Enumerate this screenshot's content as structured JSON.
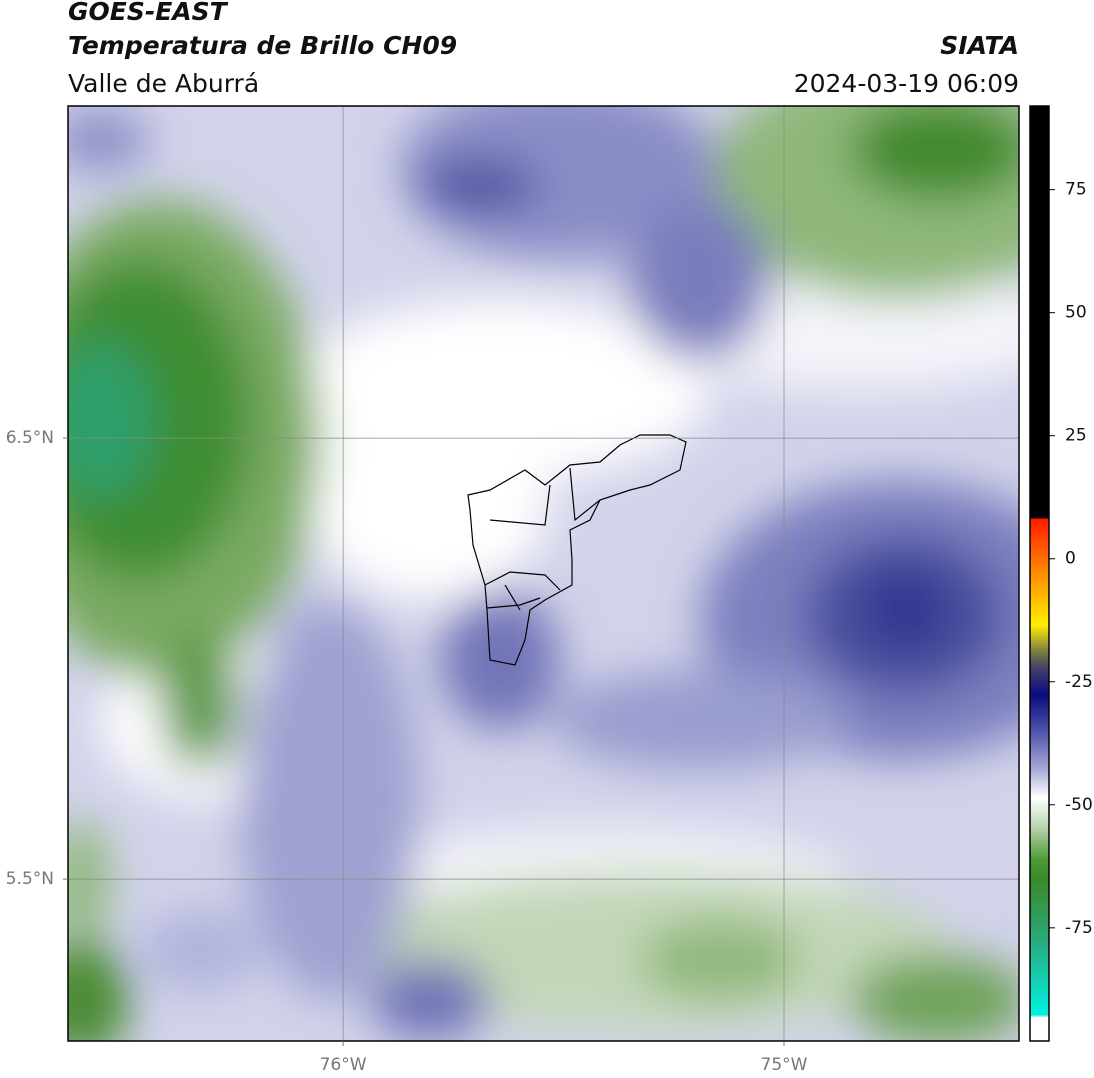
{
  "header": {
    "title": "GOES-EAST",
    "subtitle": "Temperatura de Brillo CH09",
    "region": "Valle de Aburrá",
    "source": "SIATA",
    "datetime": "2024-03-19 06:09"
  },
  "chart_data": {
    "type": "map",
    "xlim": [
      -76.624,
      -74.467
    ],
    "ylim": [
      5.133,
      7.253
    ],
    "xticks": [
      {
        "value": -76,
        "label": "76°W"
      },
      {
        "value": -75,
        "label": "75°W"
      }
    ],
    "yticks": [
      {
        "value": 6.5,
        "label": "6.5°N"
      },
      {
        "value": 5.5,
        "label": "5.5°N"
      }
    ],
    "grid": true,
    "colorbar": {
      "lim": [
        -98,
        92
      ],
      "ticks": [
        75,
        50,
        25,
        0,
        -25,
        -50,
        -75
      ]
    }
  }
}
